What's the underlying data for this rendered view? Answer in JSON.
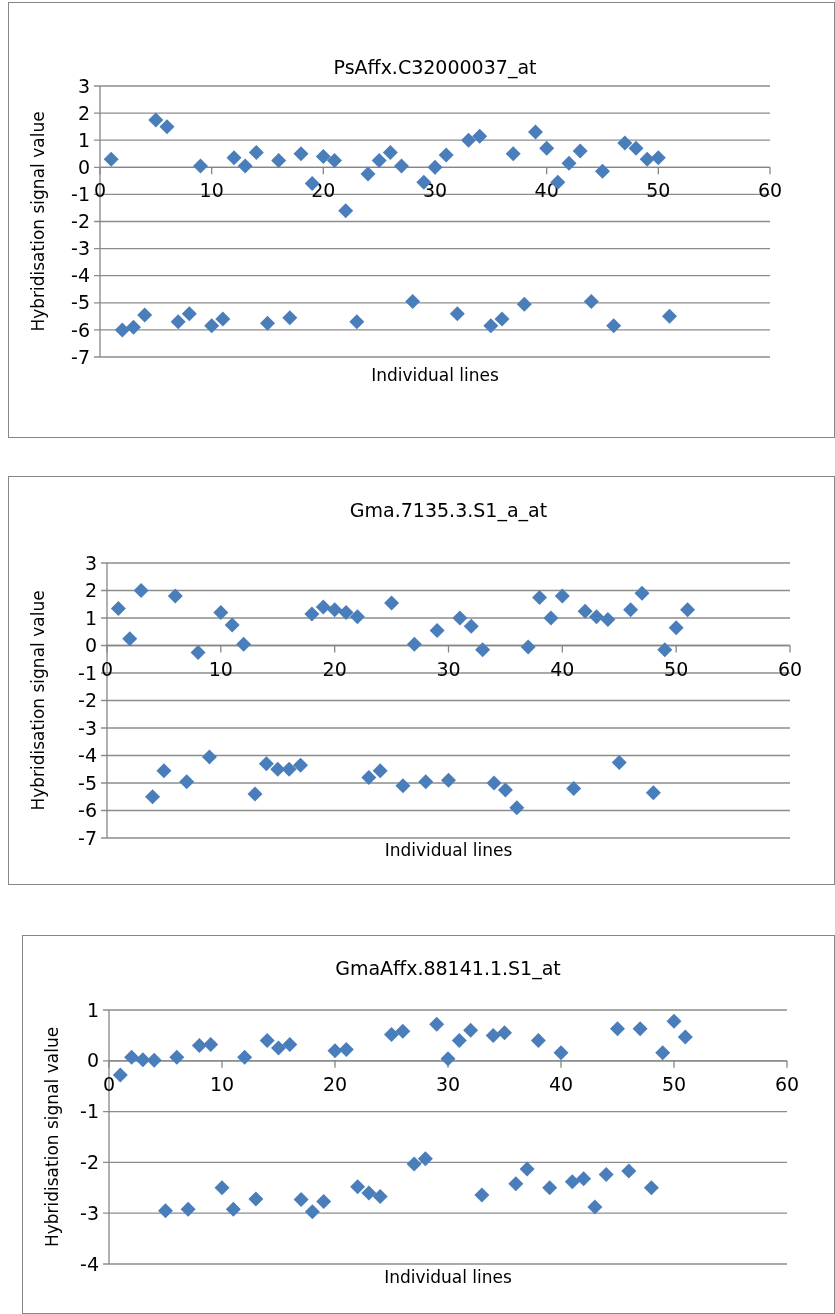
{
  "chart_data": [
    {
      "type": "scatter",
      "title": "PsAffx.C32000037_at",
      "xlabel": "Individual lines",
      "ylabel": "Hybridisation signal value",
      "xlim": [
        0,
        60
      ],
      "xticks": [
        0,
        10,
        20,
        30,
        40,
        50,
        60
      ],
      "ylim": [
        -7,
        3
      ],
      "yticks": [
        -7,
        -6,
        -5,
        -4,
        -3,
        -2,
        -1,
        0,
        1,
        2,
        3
      ],
      "grid": "y",
      "marker": "diamond",
      "series": [
        {
          "color": "#4a7ebb",
          "x": [
            1,
            5,
            6,
            9,
            12,
            13,
            14,
            16,
            18,
            19,
            20,
            21,
            22,
            24,
            25,
            26,
            27,
            29,
            30,
            31,
            33,
            34,
            37,
            39,
            40,
            41,
            42,
            43,
            45,
            47,
            48,
            49,
            50,
            2,
            3,
            4,
            7,
            8,
            10,
            11,
            15,
            17,
            23,
            28,
            32,
            35,
            36,
            38,
            44,
            46,
            51
          ],
          "values": [
            0.3,
            1.75,
            1.5,
            0.05,
            0.35,
            0.05,
            0.55,
            0.25,
            0.5,
            -0.6,
            0.4,
            0.25,
            -1.6,
            -0.25,
            0.25,
            0.55,
            0.05,
            -0.55,
            0.0,
            0.45,
            1.0,
            1.15,
            0.5,
            1.3,
            0.7,
            -0.55,
            0.15,
            0.6,
            -0.15,
            0.9,
            0.7,
            0.3,
            0.35,
            -6.0,
            -5.9,
            -5.45,
            -5.7,
            -5.4,
            -5.85,
            -5.6,
            -5.75,
            -5.55,
            -5.7,
            -4.95,
            -5.4,
            -5.85,
            -5.6,
            -5.05,
            -4.95,
            -5.85,
            -5.5
          ]
        }
      ]
    },
    {
      "type": "scatter",
      "title": "Gma.7135.3.S1_a_at",
      "xlabel": "Individual lines",
      "ylabel": "Hybridisation signal value",
      "xlim": [
        0,
        60
      ],
      "xticks": [
        0,
        10,
        20,
        30,
        40,
        50,
        60
      ],
      "ylim": [
        -7,
        3
      ],
      "yticks": [
        -7,
        -6,
        -5,
        -4,
        -3,
        -2,
        -1,
        0,
        1,
        2,
        3
      ],
      "grid": "y",
      "marker": "diamond",
      "series": [
        {
          "color": "#4a7ebb",
          "x": [
            1,
            2,
            3,
            6,
            8,
            10,
            11,
            12,
            18,
            19,
            20,
            21,
            22,
            25,
            27,
            29,
            31,
            32,
            33,
            37,
            38,
            39,
            40,
            42,
            43,
            44,
            46,
            47,
            49,
            50,
            51,
            4,
            5,
            7,
            9,
            13,
            14,
            15,
            16,
            17,
            23,
            24,
            26,
            28,
            30,
            34,
            35,
            36,
            41,
            45,
            48
          ],
          "values": [
            1.35,
            0.25,
            2.0,
            1.8,
            -0.25,
            1.2,
            0.75,
            0.05,
            1.15,
            1.4,
            1.3,
            1.2,
            1.05,
            1.55,
            0.05,
            0.55,
            1.0,
            0.7,
            -0.15,
            -0.05,
            1.75,
            1.0,
            1.8,
            1.25,
            1.05,
            0.95,
            1.3,
            1.9,
            -0.15,
            0.65,
            1.3,
            -5.5,
            -4.55,
            -4.95,
            -4.05,
            -5.4,
            -4.3,
            -4.5,
            -4.5,
            -4.35,
            -4.8,
            -4.55,
            -5.1,
            -4.95,
            -4.9,
            -5.0,
            -5.25,
            -5.9,
            -5.2,
            -4.25,
            -5.35
          ]
        }
      ]
    },
    {
      "type": "scatter",
      "title": "GmaAffx.88141.1.S1_at",
      "xlabel": "Individual lines",
      "ylabel": "Hybridisation signal value",
      "xlim": [
        0,
        60
      ],
      "xticks": [
        0,
        10,
        20,
        30,
        40,
        50,
        60
      ],
      "ylim": [
        -4,
        1
      ],
      "yticks": [
        -4,
        -3,
        -2,
        -1,
        0,
        1
      ],
      "grid": "y",
      "marker": "diamond",
      "series": [
        {
          "color": "#4a7ebb",
          "x": [
            1,
            2,
            3,
            4,
            6,
            8,
            9,
            12,
            14,
            15,
            16,
            20,
            21,
            25,
            26,
            29,
            30,
            31,
            32,
            34,
            35,
            38,
            40,
            45,
            47,
            49,
            50,
            51,
            5,
            7,
            10,
            11,
            13,
            17,
            18,
            19,
            22,
            23,
            24,
            27,
            28,
            33,
            36,
            37,
            39,
            41,
            42,
            43,
            44,
            46,
            48
          ],
          "values": [
            -0.28,
            0.07,
            0.02,
            0.01,
            0.07,
            0.3,
            0.32,
            0.07,
            0.4,
            0.25,
            0.32,
            0.2,
            0.22,
            0.52,
            0.58,
            0.72,
            0.04,
            0.4,
            0.6,
            0.5,
            0.55,
            0.4,
            0.16,
            0.63,
            0.63,
            0.16,
            0.78,
            0.47,
            -2.95,
            -2.92,
            -2.5,
            -2.92,
            -2.72,
            -2.73,
            -2.97,
            -2.77,
            -2.48,
            -2.6,
            -2.67,
            -2.03,
            -1.93,
            -2.64,
            -2.42,
            -2.13,
            -2.5,
            -2.38,
            -2.32,
            -2.88,
            -2.24,
            -2.17,
            -2.5
          ]
        }
      ]
    }
  ]
}
